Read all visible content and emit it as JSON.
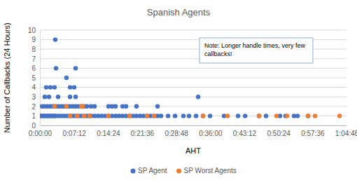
{
  "chart_data": {
    "type": "scatter",
    "title": "Spanish Agents",
    "x_label": "AHT",
    "y_label": "Number of Callbacks (24 Hours)",
    "annotation": [
      "Note:  Longer handle times, very few",
      "callbacks!"
    ],
    "xlim": [
      0,
      3888
    ],
    "xticks": [
      {
        "value": 0,
        "label": "0:00:00"
      },
      {
        "value": 432,
        "label": "0:07:12"
      },
      {
        "value": 864,
        "label": "0:14:24"
      },
      {
        "value": 1296,
        "label": "0:21:36"
      },
      {
        "value": 1728,
        "label": "0:28:48"
      },
      {
        "value": 2160,
        "label": "0:36:00"
      },
      {
        "value": 2592,
        "label": "0:43:12"
      },
      {
        "value": 3024,
        "label": "0:50:24"
      },
      {
        "value": 3456,
        "label": "0:57:36"
      },
      {
        "value": 3888,
        "label": "1:04:48"
      }
    ],
    "ylim": [
      0,
      10
    ],
    "yticks": [
      0,
      1,
      2,
      3,
      4,
      5,
      6,
      7,
      8,
      9,
      10
    ],
    "grid": true,
    "legend": "bottom",
    "marker": "circle",
    "series": [
      {
        "name": "SP Agent",
        "color": "#4472c4",
        "x": [
          9,
          27,
          44,
          62,
          80,
          98,
          115,
          133,
          151,
          169,
          186,
          204,
          240,
          275,
          311,
          346,
          382,
          417,
          453,
          488,
          524,
          559,
          595,
          630,
          648,
          693,
          737,
          781,
          826,
          870,
          915,
          959,
          1003,
          1048,
          1092,
          1137,
          1181,
          1225,
          1270,
          1314,
          1359,
          1403,
          1447,
          1492,
          1536,
          1625,
          1714,
          1820,
          1891,
          1980,
          2069,
          2158,
          2335,
          2513,
          2602,
          2779,
          2868,
          3045,
          3116,
          3223,
          3268,
          3400,
          27,
          62,
          98,
          133,
          169,
          204,
          240,
          275,
          311,
          346,
          382,
          417,
          453,
          488,
          524,
          559,
          595,
          648,
          693,
          870,
          915,
          959,
          1048,
          1092,
          1225,
          1492,
          62,
          115,
          231,
          382,
          453,
          2007,
          80,
          133,
          186,
          382,
          435,
          337,
          204,
          453,
          195
        ],
        "values": [
          1,
          1,
          1,
          1,
          1,
          1,
          1,
          1,
          1,
          1,
          1,
          1,
          1,
          1,
          1,
          1,
          1,
          1,
          1,
          1,
          1,
          1,
          1,
          1,
          1,
          1,
          1,
          1,
          1,
          1,
          1,
          1,
          1,
          1,
          1,
          1,
          1,
          1,
          1,
          1,
          1,
          1,
          1,
          1,
          1,
          1,
          1,
          1,
          1,
          1,
          1,
          1,
          1,
          1,
          1,
          1,
          1,
          1,
          1,
          1,
          1,
          1,
          2,
          2,
          2,
          2,
          2,
          2,
          2,
          2,
          2,
          2,
          2,
          2,
          2,
          2,
          2,
          2,
          2,
          2,
          2,
          2,
          2,
          2,
          2,
          2,
          2,
          2,
          3,
          3,
          3,
          3,
          3,
          3,
          4,
          4,
          4,
          4,
          4,
          5,
          6,
          6,
          9
        ]
      },
      {
        "name": "SP Worst Agents",
        "color": "#ed7d31",
        "x": [
          382,
          471,
          559,
          630,
          870,
          1137,
          1359,
          1447,
          2069,
          2380,
          2779,
          3001,
          3134,
          3400,
          3489,
          3800,
          186,
          337,
          524,
          542
        ],
        "values": [
          1,
          1,
          1,
          1,
          1,
          1,
          1,
          1,
          1,
          1,
          1,
          1,
          1,
          1,
          1,
          1,
          2,
          2,
          2,
          2
        ]
      }
    ]
  }
}
